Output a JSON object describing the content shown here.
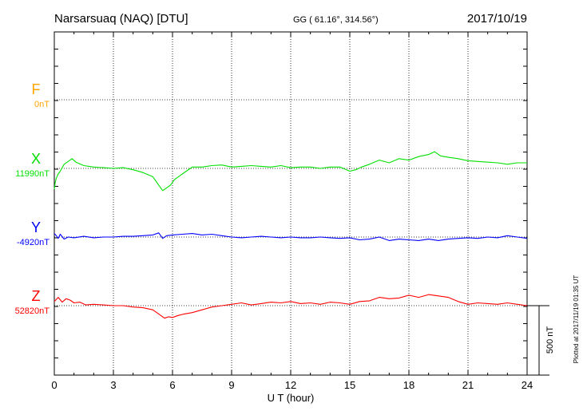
{
  "header": {
    "station": "Narsarsuaq (NAQ)  [DTU]",
    "coords": "GG ( 61.16°, 314.56°)",
    "date": "2017/10/19"
  },
  "side_note": "Plotted at 2017/11/19 01:35 UT",
  "scale_label": "500 nT",
  "chart_data": {
    "type": "line",
    "title": "Narsarsuaq (NAQ)  [DTU]",
    "xlabel": "U T (hour)",
    "ylabel": "",
    "xlim": [
      0,
      24
    ],
    "xticks": [
      0,
      3,
      6,
      9,
      12,
      15,
      18,
      21,
      24
    ],
    "xtick_labels": [
      "0",
      "3",
      "6",
      "9",
      "12",
      "15",
      "18",
      "21",
      "24"
    ],
    "grid": true,
    "scale_bar_nT": 500,
    "series": [
      {
        "name": "F",
        "baseline_label": "0nT",
        "color": "#ffa500",
        "x": [],
        "y": []
      },
      {
        "name": "X",
        "baseline_label": "11990nT",
        "color": "#00e000",
        "x": [
          0,
          0.05,
          0.1,
          0.2,
          0.3,
          0.5,
          0.7,
          0.9,
          1.1,
          1.5,
          2,
          2.5,
          3,
          3.5,
          4,
          4.5,
          5,
          5.3,
          5.5,
          5.7,
          5.9,
          6.1,
          6.4,
          6.7,
          7,
          7.5,
          8,
          8.5,
          9,
          9.5,
          10,
          10.5,
          11,
          11.5,
          12,
          12.5,
          13,
          13.5,
          14,
          14.5,
          15,
          15.3,
          15.6,
          16,
          16.5,
          17,
          17.5,
          18,
          18.5,
          19,
          19.3,
          19.6,
          20,
          20.5,
          21,
          21.5,
          22,
          22.5,
          23,
          23.5,
          24
        ],
        "y": [
          -150,
          -100,
          -70,
          -40,
          -20,
          30,
          50,
          70,
          45,
          20,
          10,
          5,
          0,
          5,
          -10,
          -30,
          -60,
          -120,
          -160,
          -140,
          -120,
          -80,
          -50,
          -20,
          10,
          10,
          20,
          25,
          10,
          15,
          20,
          15,
          10,
          20,
          5,
          10,
          10,
          0,
          10,
          10,
          -20,
          -10,
          10,
          30,
          60,
          40,
          70,
          60,
          85,
          100,
          120,
          90,
          80,
          70,
          55,
          50,
          45,
          40,
          30,
          40,
          40
        ]
      },
      {
        "name": "Y",
        "baseline_label": "-4920nT",
        "color": "#0000ff",
        "x": [
          0,
          0.1,
          0.2,
          0.3,
          0.5,
          0.7,
          1,
          1.5,
          2,
          2.5,
          3,
          3.5,
          4,
          4.5,
          5,
          5.3,
          5.5,
          5.7,
          6,
          6.5,
          7,
          7.5,
          8,
          8.5,
          9,
          9.5,
          10,
          10.5,
          11,
          11.5,
          12,
          12.5,
          13,
          13.5,
          14,
          14.5,
          15,
          15.5,
          16,
          16.5,
          17,
          17.5,
          18,
          18.5,
          19,
          19.5,
          20,
          20.5,
          21,
          21.5,
          22,
          22.5,
          23,
          23.5,
          24
        ],
        "y": [
          25,
          10,
          -10,
          20,
          -15,
          0,
          -5,
          5,
          -5,
          0,
          0,
          5,
          5,
          10,
          15,
          30,
          -10,
          10,
          15,
          20,
          25,
          15,
          20,
          10,
          0,
          -5,
          0,
          5,
          0,
          -5,
          0,
          -5,
          -5,
          0,
          -5,
          -10,
          -5,
          -20,
          -15,
          0,
          -25,
          -15,
          -20,
          -25,
          -15,
          -25,
          -15,
          -10,
          -5,
          -10,
          0,
          -5,
          10,
          0,
          -10
        ]
      },
      {
        "name": "Z",
        "baseline_label": "52820nT",
        "color": "#ff0000",
        "x": [
          0,
          0.2,
          0.4,
          0.6,
          0.8,
          1,
          1.3,
          1.6,
          2,
          2.5,
          3,
          3.5,
          4,
          4.5,
          5,
          5.3,
          5.6,
          5.8,
          6,
          6.3,
          6.6,
          7,
          7.5,
          8,
          8.5,
          9,
          9.5,
          10,
          10.5,
          11,
          11.5,
          12,
          12.5,
          13,
          13.5,
          14,
          14.5,
          15,
          15.5,
          16,
          16.5,
          17,
          17.5,
          18,
          18.5,
          19,
          19.5,
          20,
          20.5,
          21,
          21.5,
          22,
          22.5,
          23,
          23.5,
          24
        ],
        "y": [
          30,
          60,
          25,
          50,
          40,
          20,
          25,
          5,
          10,
          5,
          0,
          0,
          -10,
          -15,
          -30,
          -60,
          -90,
          -80,
          -85,
          -70,
          -60,
          -50,
          -30,
          -10,
          0,
          10,
          20,
          5,
          15,
          25,
          20,
          30,
          15,
          20,
          10,
          25,
          20,
          10,
          30,
          35,
          60,
          50,
          55,
          75,
          60,
          80,
          70,
          60,
          30,
          10,
          20,
          15,
          10,
          20,
          10,
          0
        ]
      }
    ]
  }
}
